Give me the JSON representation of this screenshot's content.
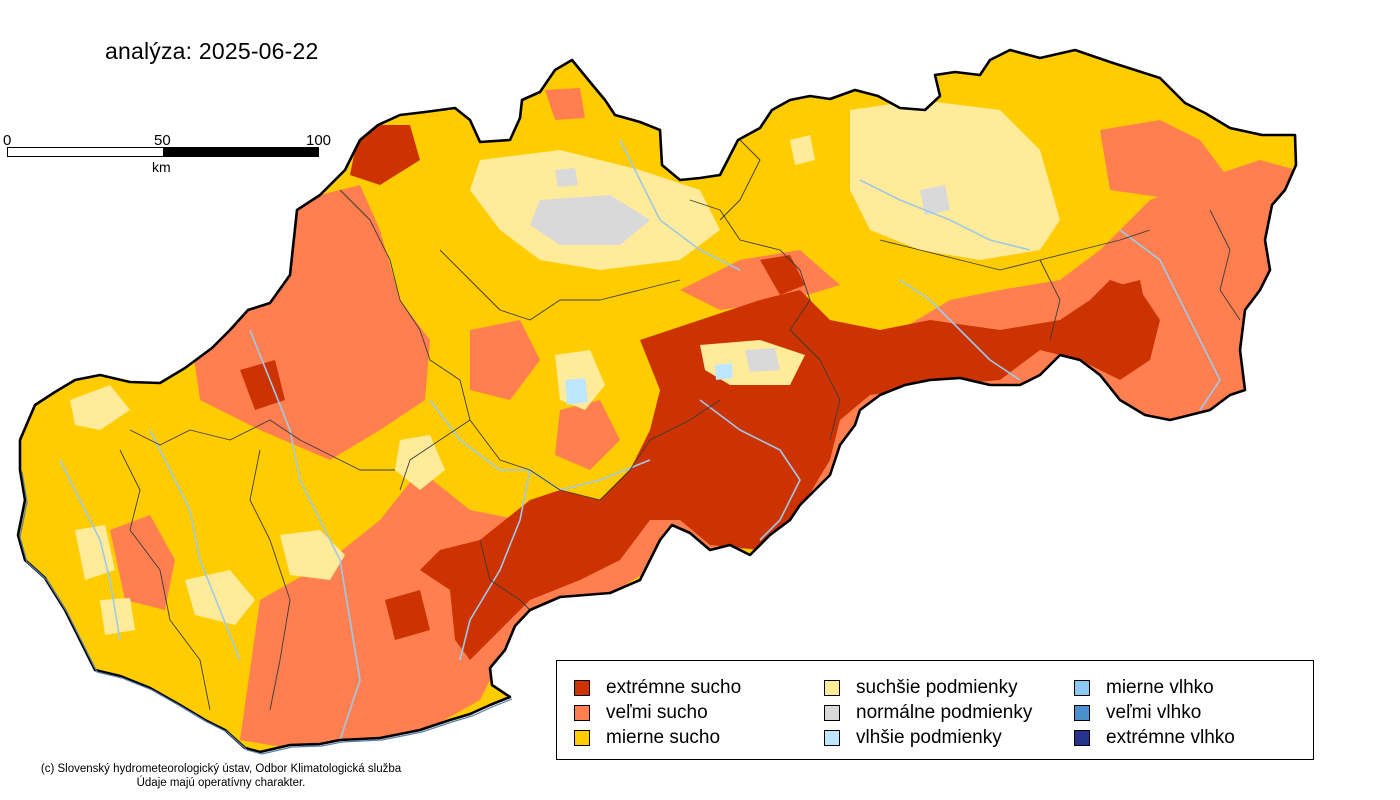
{
  "title": "analýza: 2025-06-22",
  "scale": {
    "ticks": [
      "0",
      "50",
      "100"
    ],
    "unit": "km"
  },
  "legend": [
    {
      "label": "extrémne sucho",
      "color": "#cc3300"
    },
    {
      "label": "veľmi sucho",
      "color": "#ff7f50"
    },
    {
      "label": "mierne sucho",
      "color": "#ffcc00"
    },
    {
      "label": "suchšie podmienky",
      "color": "#ffeb99"
    },
    {
      "label": "normálne podmienky",
      "color": "#d9d9d9"
    },
    {
      "label": "vlhšie podmienky",
      "color": "#bfe6ff"
    },
    {
      "label": "mierne vlhko",
      "color": "#8cc8f2"
    },
    {
      "label": "veľmi vlhko",
      "color": "#4c8fcf"
    },
    {
      "label": "extrémne vlhko",
      "color": "#26338c"
    }
  ],
  "credit": {
    "line1": "(c) Slovenský hydrometeorologický ústav, Odbor Klimatologická služba",
    "line2": "Údaje majú operatívny charakter."
  },
  "colors": {
    "border": "#000000",
    "rivers": "#9fc9e8",
    "districts": "#3b3b3b"
  }
}
